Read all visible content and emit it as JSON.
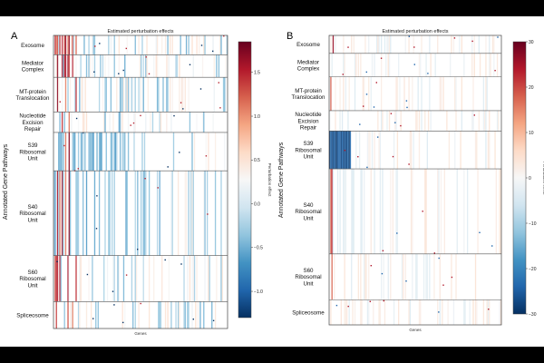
{
  "chart_data": [
    {
      "type": "heatmap",
      "panel_label": "A",
      "title": "Estimated perturbation effects",
      "xlabel": "Genes",
      "ylabel": "Annotated Gene Pathways",
      "rows": [
        "Exosome",
        "Mediator Complex",
        "MT-protein Translocation",
        "Nucleotide Excision Repair",
        "S39 Ribosomal Unit",
        "S40 Ribosomal Unit",
        "S60 Ribosomal Unit",
        "Spliceosome"
      ],
      "row_label_lines": [
        [
          "Exosome"
        ],
        [
          "Mediator",
          "Complex"
        ],
        [
          "MT-protein",
          "Translocation"
        ],
        [
          "Nucleotide",
          "Excision",
          "Repair"
        ],
        [
          "S39",
          "Ribosomal",
          "Unit"
        ],
        [
          "S40",
          "Ribosomal",
          "Unit"
        ],
        [
          "S60",
          "Ribosomal",
          "Unit"
        ],
        [
          "Spliceosome"
        ]
      ],
      "row_fraction": [
        0.066,
        0.077,
        0.118,
        0.07,
        0.131,
        0.289,
        0.157,
        0.092
      ],
      "colorbar": {
        "label": "Perturbation effect",
        "range": [
          -1.3,
          1.85
        ],
        "ticks": [
          -1.0,
          -0.5,
          0.0,
          0.5,
          1.0,
          1.5
        ],
        "tick_labels": [
          "−1.0",
          "−0.5",
          "0.0",
          "0.5",
          "1.0",
          "1.5"
        ],
        "cmap": "RdBu_r"
      },
      "pattern": {
        "seed": 7,
        "strong_red_cols": [
          0.005,
          0.012,
          0.022,
          0.035,
          0.045,
          0.063,
          0.083,
          0.105,
          0.125
        ],
        "hot_rows": [
          0
        ],
        "blue_dense_span": [
          0.0,
          0.55
        ],
        "blue_rows": [
          4,
          5
        ],
        "intensity": 0.7
      }
    },
    {
      "type": "heatmap",
      "panel_label": "B",
      "title": "Estimated perturbation effects",
      "xlabel": "Genes",
      "ylabel": "Annotated Gene Pathways",
      "rows": [
        "Exosome",
        "Mediator Complex",
        "MT-protein Translocation",
        "Nucleotide Excision Repair",
        "S39 Ribosomal Unit",
        "S40 Ribosomal Unit",
        "S60 Ribosomal Unit",
        "Spliceosome"
      ],
      "row_label_lines": [
        [
          "Exosome"
        ],
        [
          "Mediator",
          "Complex"
        ],
        [
          "MT-protein",
          "Translocation"
        ],
        [
          "Nucleotide",
          "Excision",
          "Repair"
        ],
        [
          "S39",
          "Ribosomal",
          "Unit"
        ],
        [
          "S40",
          "Ribosomal",
          "Unit"
        ],
        [
          "S60",
          "Ribosomal",
          "Unit"
        ],
        [
          "Spliceosome"
        ]
      ],
      "row_fraction": [
        0.062,
        0.081,
        0.117,
        0.07,
        0.131,
        0.294,
        0.158,
        0.087
      ],
      "colorbar": {
        "label": "Perturbation effect",
        "range": [
          -30,
          30
        ],
        "ticks": [
          -30,
          -20,
          -10,
          0,
          10,
          20,
          30
        ],
        "tick_labels": [
          "−30",
          "−20",
          "−10",
          "0",
          "10",
          "20",
          "30"
        ],
        "cmap": "RdBu_r"
      },
      "pattern": {
        "seed": 21,
        "strong_red_cols": [
          0.01,
          0.02
        ],
        "hot_rows": [],
        "blue_dense_span": [
          0.0,
          0.2
        ],
        "blue_rows": [
          4,
          5
        ],
        "block": {
          "row": 4,
          "span": [
            0.0,
            0.12
          ],
          "value": -30
        },
        "intensity": 0.35
      }
    }
  ]
}
